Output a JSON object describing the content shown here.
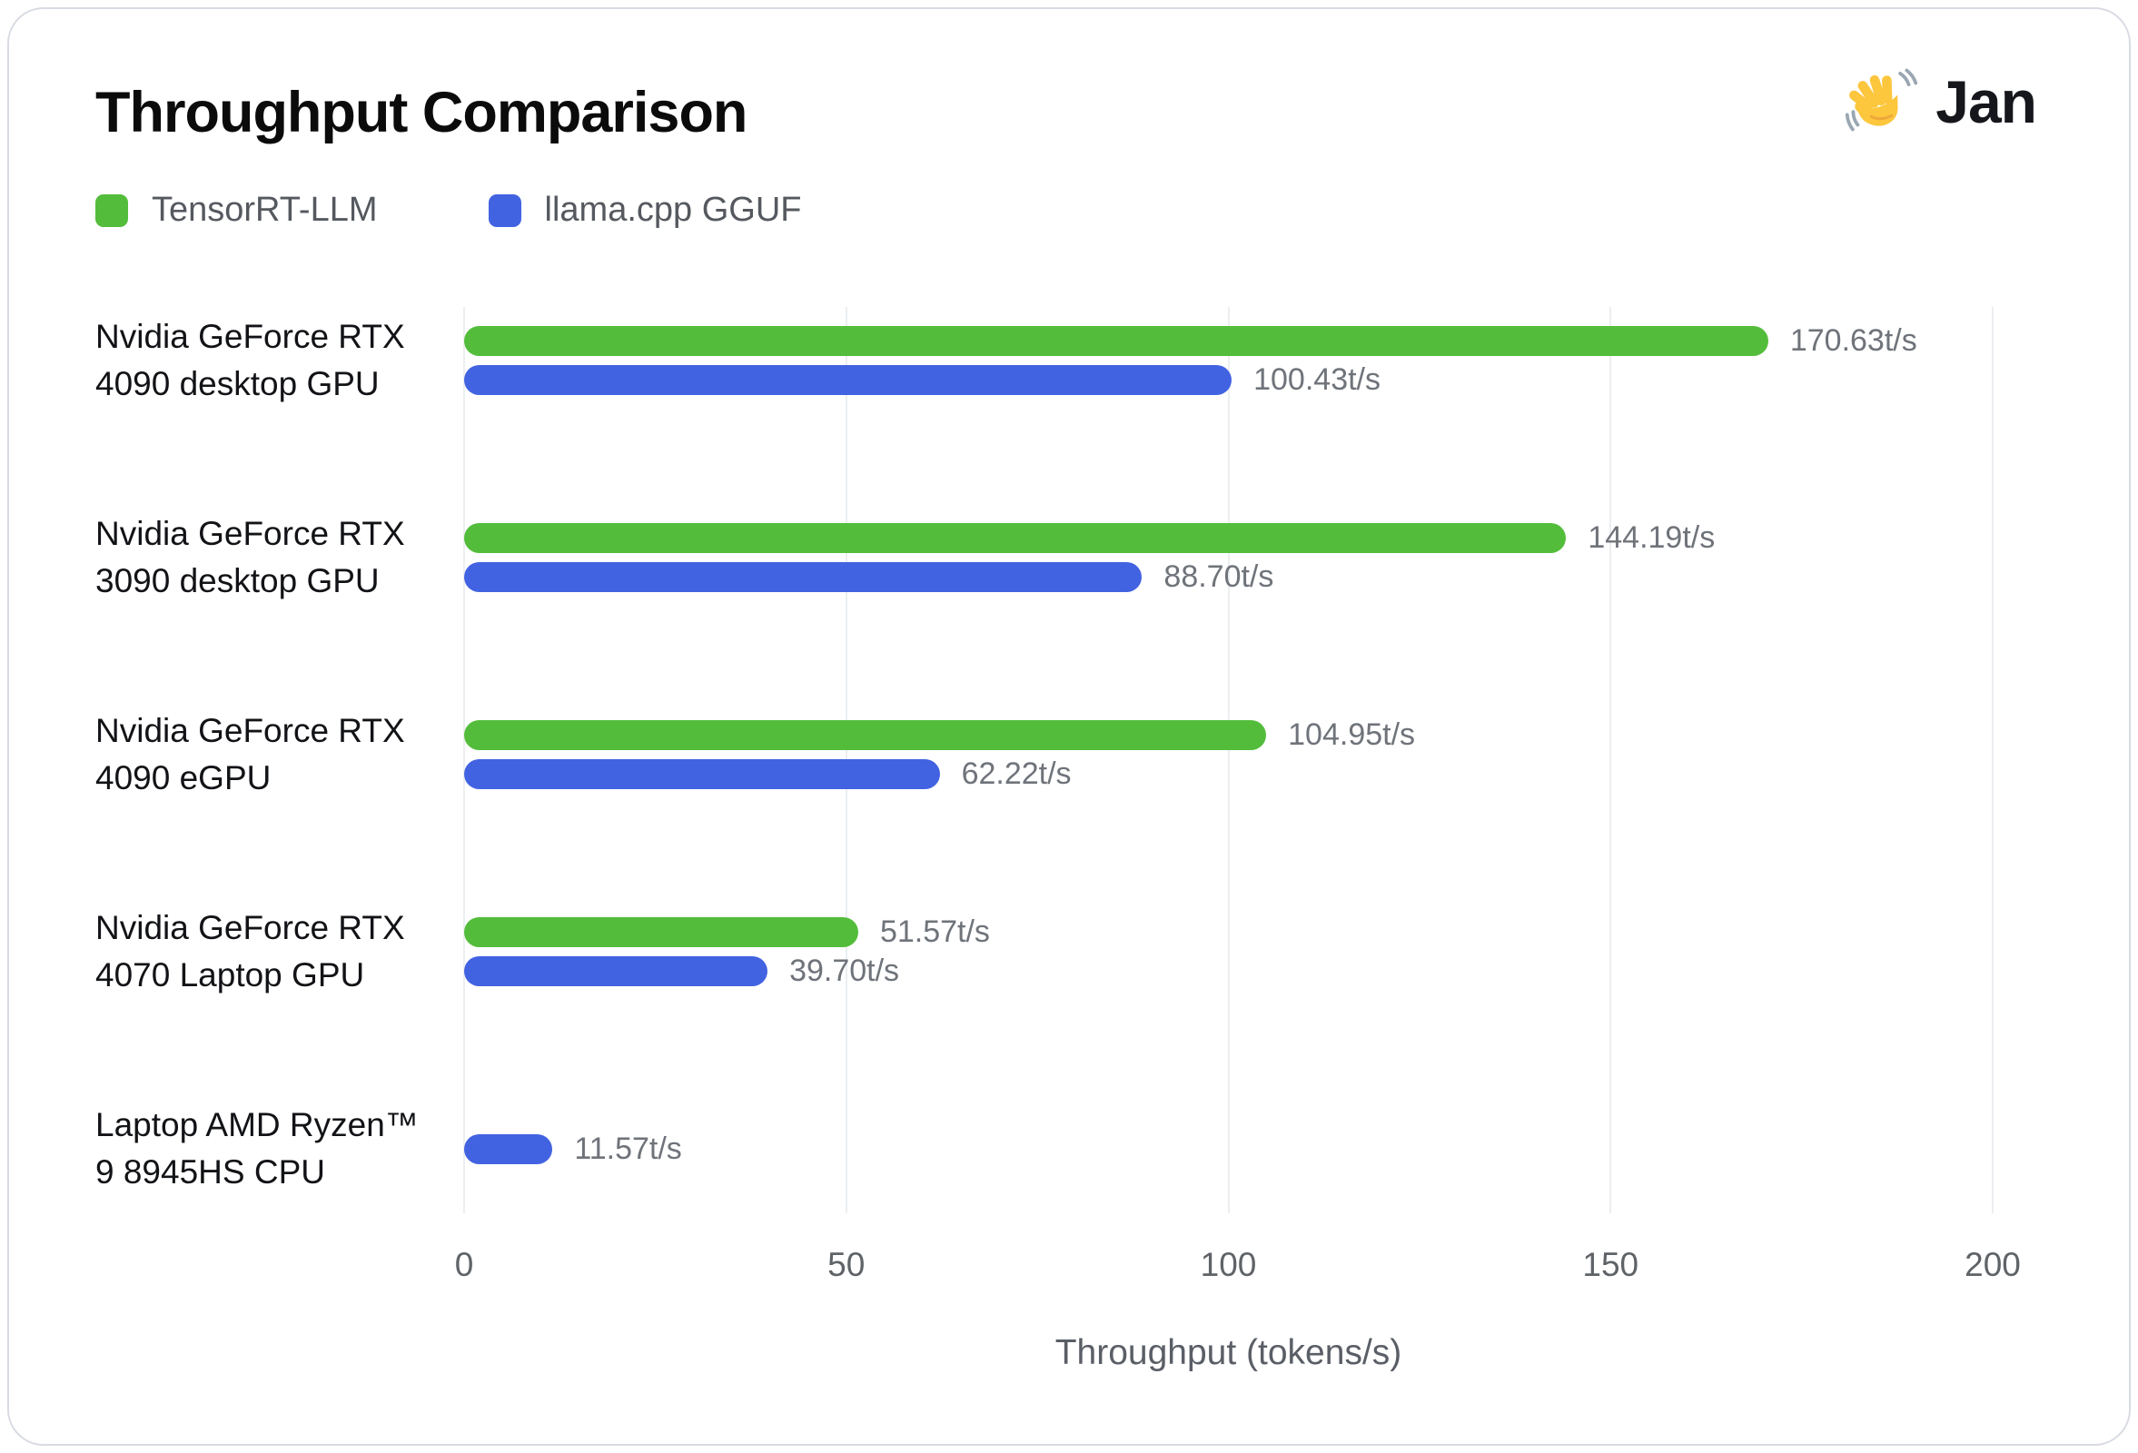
{
  "header": {
    "title": "Throughput Comparison",
    "brand": "Jan",
    "brand_icon": "waving-hand-icon"
  },
  "colors": {
    "green": "#53bd3b",
    "blue": "#4263e1",
    "grid": "#eceef1",
    "card_border": "#d9dbe3",
    "value_text": "#6f737a",
    "tick_text": "#5f6368",
    "category_text": "#121316",
    "legend_text": "#55595f"
  },
  "chart_data": {
    "type": "bar",
    "orientation": "horizontal",
    "title": "Throughput Comparison",
    "xlabel": "Throughput (tokens/s)",
    "xlim": [
      0,
      200
    ],
    "xticks": [
      0,
      50,
      100,
      150,
      200
    ],
    "grid": true,
    "legend_position": "top-left",
    "unit": "t/s",
    "categories": [
      "Nvidia GeForce RTX 4090 desktop GPU",
      "Nvidia GeForce RTX 3090 desktop GPU",
      "Nvidia GeForce RTX 4090 eGPU",
      "Nvidia GeForce RTX 4070 Laptop GPU",
      "Laptop AMD Ryzen™ 9 8945HS CPU"
    ],
    "category_lines": [
      [
        "Nvidia GeForce RTX",
        "4090 desktop GPU"
      ],
      [
        "Nvidia GeForce RTX",
        "3090 desktop GPU"
      ],
      [
        "Nvidia GeForce RTX",
        "4090 eGPU"
      ],
      [
        "Nvidia GeForce RTX",
        "4070 Laptop GPU"
      ],
      [
        "Laptop AMD Ryzen™",
        "9 8945HS CPU"
      ]
    ],
    "series": [
      {
        "name": "TensorRT-LLM",
        "color": "#53bd3b",
        "values": [
          170.63,
          144.19,
          104.95,
          51.57,
          null
        ],
        "labels": [
          "170.63t/s",
          "144.19t/s",
          "104.95t/s",
          "51.57t/s",
          null
        ]
      },
      {
        "name": "llama.cpp GGUF",
        "color": "#4263e1",
        "values": [
          100.43,
          88.7,
          62.22,
          39.7,
          11.57
        ],
        "labels": [
          "100.43t/s",
          "88.70t/s",
          "62.22t/s",
          "39.70t/s",
          "11.57t/s"
        ]
      }
    ]
  }
}
